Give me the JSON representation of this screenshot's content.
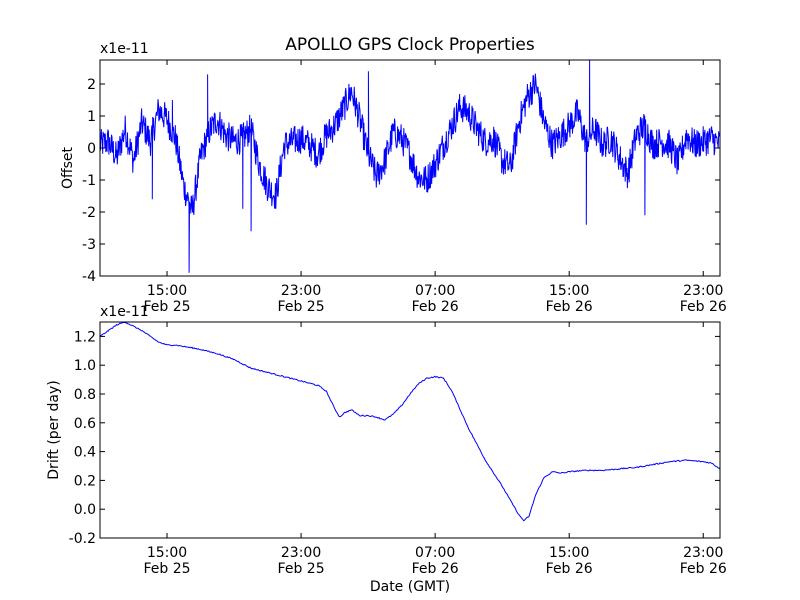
{
  "figure": {
    "title": "APOLLO GPS Clock Properties",
    "line_color": "#0000ff"
  },
  "chart_data": [
    {
      "type": "line",
      "title": "APOLLO GPS Clock Properties",
      "xlabel": "",
      "ylabel": "Offset",
      "scale_label": "x1e-11",
      "y_unit_multiplier": 1e-11,
      "x_unit": "hours since 2011-02-25 11:00 GMT",
      "xlim": [
        0,
        37
      ],
      "ylim": [
        -4,
        2.75
      ],
      "yticks": [
        -4,
        -3,
        -2,
        -1,
        0,
        1,
        2
      ],
      "xticks": [
        {
          "x": 4,
          "time": "15:00",
          "date": "Feb 25"
        },
        {
          "x": 12,
          "time": "23:00",
          "date": "Feb 25"
        },
        {
          "x": 20,
          "time": "07:00",
          "date": "Feb 26"
        },
        {
          "x": 28,
          "time": "15:00",
          "date": "Feb 26"
        },
        {
          "x": 36,
          "time": "23:00",
          "date": "Feb 26"
        }
      ],
      "series": [
        {
          "color": "#0000ff",
          "x": [
            0,
            0.5,
            1,
            1.5,
            2,
            2.5,
            3,
            3.5,
            4,
            4.5,
            5,
            5.5,
            6,
            6.5,
            7,
            7.5,
            8,
            8.5,
            9,
            9.5,
            10,
            10.5,
            11,
            11.5,
            12,
            12.5,
            13,
            13.5,
            14,
            14.5,
            15,
            15.5,
            16,
            16.5,
            17,
            17.5,
            18,
            18.5,
            19,
            19.5,
            20,
            20.5,
            21,
            21.5,
            22,
            22.5,
            23,
            23.5,
            24,
            24.5,
            25,
            25.5,
            26,
            26.5,
            27,
            27.5,
            28,
            28.5,
            29,
            29.5,
            30,
            30.5,
            31,
            31.5,
            32,
            32.5,
            33,
            33.5,
            34,
            34.5,
            35,
            35.5,
            36,
            36.5,
            37
          ],
          "values": [
            0.1,
            0.2,
            -0.3,
            0.6,
            -0.4,
            0.8,
            0.2,
            1.2,
            0.9,
            0.3,
            -1.2,
            -2.0,
            -0.3,
            0.5,
            0.9,
            0.4,
            0.2,
            0.3,
            0.6,
            -0.5,
            -1.2,
            -1.5,
            0.1,
            0.2,
            0.3,
            0.1,
            -0.2,
            0.4,
            0.7,
            1.2,
            1.8,
            0.9,
            -0.2,
            -0.9,
            -0.4,
            0.5,
            0.3,
            -0.2,
            -0.9,
            -1.0,
            -0.5,
            0.1,
            0.7,
            1.3,
            1.1,
            0.6,
            0.2,
            0.3,
            -0.4,
            -0.6,
            0.8,
            1.6,
            2.0,
            0.8,
            0.1,
            0.4,
            0.7,
            1.1,
            0.2,
            0.6,
            0.1,
            0.3,
            -0.3,
            -0.8,
            0.4,
            0.7,
            0.1,
            0.2,
            0.1,
            -0.5,
            0.4,
            0.1,
            0.2,
            0.3,
            0.1
          ],
          "noise_amplitude": 0.3
        }
      ]
    },
    {
      "type": "line",
      "title": "",
      "xlabel": "Date (GMT)",
      "ylabel": "Drift (per day)",
      "scale_label": "x1e-11",
      "y_unit_multiplier": 1e-11,
      "x_unit": "hours since 2011-02-25 11:00 GMT",
      "xlim": [
        0,
        37
      ],
      "ylim": [
        -0.2,
        1.3
      ],
      "yticks": [
        -0.2,
        0.0,
        0.2,
        0.4,
        0.6,
        0.8,
        1.0,
        1.2
      ],
      "xticks": [
        {
          "x": 4,
          "time": "15:00",
          "date": "Feb 25"
        },
        {
          "x": 12,
          "time": "23:00",
          "date": "Feb 25"
        },
        {
          "x": 20,
          "time": "07:00",
          "date": "Feb 26"
        },
        {
          "x": 28,
          "time": "15:00",
          "date": "Feb 26"
        },
        {
          "x": 36,
          "time": "23:00",
          "date": "Feb 26"
        }
      ],
      "series": [
        {
          "color": "#0000ff",
          "x": [
            0,
            0.5,
            1,
            1.5,
            2,
            2.5,
            3,
            3.5,
            4,
            4.5,
            5,
            5.5,
            6,
            7,
            8,
            9,
            10,
            11,
            12,
            13,
            13.5,
            14,
            14.3,
            14.6,
            15,
            15.5,
            16,
            16.5,
            17,
            17.5,
            18,
            18.5,
            19,
            19.5,
            20,
            20.5,
            21,
            22,
            23,
            24,
            24.5,
            25,
            25.3,
            25.6,
            26,
            26.5,
            27,
            27.5,
            28,
            29,
            30,
            31,
            32,
            33,
            34,
            35,
            36,
            36.5,
            37
          ],
          "values": [
            1.2,
            1.24,
            1.28,
            1.3,
            1.27,
            1.24,
            1.2,
            1.16,
            1.14,
            1.14,
            1.13,
            1.12,
            1.11,
            1.08,
            1.04,
            0.98,
            0.95,
            0.92,
            0.89,
            0.86,
            0.82,
            0.7,
            0.64,
            0.67,
            0.69,
            0.65,
            0.65,
            0.64,
            0.62,
            0.66,
            0.72,
            0.8,
            0.87,
            0.91,
            0.92,
            0.91,
            0.82,
            0.56,
            0.34,
            0.16,
            0.06,
            -0.04,
            -0.08,
            -0.05,
            0.1,
            0.22,
            0.26,
            0.25,
            0.26,
            0.27,
            0.27,
            0.28,
            0.29,
            0.31,
            0.33,
            0.34,
            0.33,
            0.32,
            0.28
          ],
          "noise_amplitude": 0.004
        }
      ]
    }
  ]
}
